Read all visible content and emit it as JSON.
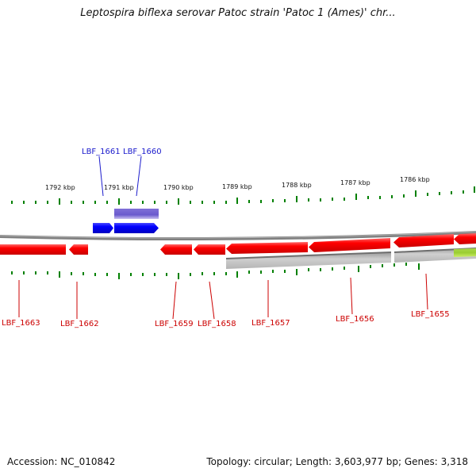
{
  "title": "Leptospira biflexa serovar Patoc strain 'Patoc 1 (Ames)' chr...",
  "accession": "Accession: NC_010842",
  "topology": "Topology: circular; Length: 3,603,977 bp; Genes: 3,318",
  "kbp_labels": [
    "1792 kbp",
    "1791 kbp",
    "1790 kbp",
    "1789 kbp",
    "1788 kbp",
    "1787 kbp",
    "1786 kbp"
  ],
  "genes_top": [
    "LBF_1661",
    "LBF_1660"
  ],
  "genes_bottom": [
    "LBF_1663",
    "LBF_1662",
    "LBF_1659",
    "LBF_1658",
    "LBF_1657",
    "LBF_1656",
    "LBF_1655"
  ],
  "colors": {
    "forward_gene": "#0000ff",
    "reverse_gene": "#ff0000",
    "tick": "#008000",
    "backbone": "#808080",
    "forward_feature": "#6a5acd",
    "reverse_feature": "#bdbdbd",
    "other_feature": "#9acd32"
  }
}
